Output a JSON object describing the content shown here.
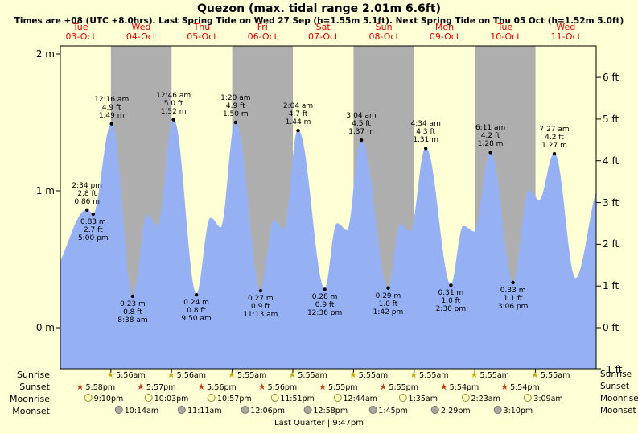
{
  "title": "Quezon (max. tidal range 2.01m 6.6ft)",
  "subtitle": "Times are +08 (UTC +8.0hrs). Last Spring Tide on Wed 27 Sep (h=1.55m 5.1ft). Next Spring Tide on Thu 05 Oct (h=1.52m 5.0ft)",
  "colors": {
    "background": "#ffffd5",
    "band_gray": "#aeaeae",
    "tide_blue": "#95b1f4",
    "header_red": "#e60000",
    "text": "#000000"
  },
  "days": [
    {
      "weekday": "Tue",
      "date": "03-Oct"
    },
    {
      "weekday": "Wed",
      "date": "04-Oct"
    },
    {
      "weekday": "Thu",
      "date": "05-Oct"
    },
    {
      "weekday": "Fri",
      "date": "06-Oct"
    },
    {
      "weekday": "Sat",
      "date": "07-Oct"
    },
    {
      "weekday": "Sun",
      "date": "08-Oct"
    },
    {
      "weekday": "Mon",
      "date": "09-Oct"
    },
    {
      "weekday": "Tue",
      "date": "10-Oct"
    },
    {
      "weekday": "Wed",
      "date": "11-Oct"
    }
  ],
  "axes": {
    "left": [
      "2 m",
      "1 m",
      "0 m"
    ],
    "right": [
      "6 ft",
      "5 ft",
      "4 ft",
      "3 ft",
      "2 ft",
      "1 ft",
      "0 ft",
      "-1 ft"
    ]
  },
  "chart_data": {
    "type": "area",
    "title": "Quezon (max. tidal range 2.01m 6.6ft)",
    "x_unit": "hours since 03-Oct 00:00 (+08)",
    "xlim_hours": [
      4,
      216
    ],
    "ylim_m": [
      -0.305,
      2.06
    ],
    "ylabel_left": "m",
    "ylabel_right": "ft",
    "tide_events": [
      {
        "date": "03-Oct",
        "type": "high",
        "time": "2:34 pm",
        "height_m": 0.86,
        "height_ft": 2.8
      },
      {
        "date": "03-Oct",
        "type": "low",
        "time": "5:00 pm",
        "height_m": 0.83,
        "height_ft": 2.7
      },
      {
        "date": "04-Oct",
        "type": "high",
        "time": "12:16 am",
        "height_m": 1.49,
        "height_ft": 4.9
      },
      {
        "date": "04-Oct",
        "type": "low",
        "time": "8:38 am",
        "height_m": 0.23,
        "height_ft": 0.8
      },
      {
        "date": "05-Oct",
        "type": "high",
        "time": "12:46 am",
        "height_m": 1.52,
        "height_ft": 5.0
      },
      {
        "date": "05-Oct",
        "type": "low",
        "time": "9:50 am",
        "height_m": 0.24,
        "height_ft": 0.8
      },
      {
        "date": "06-Oct",
        "type": "high",
        "time": "1:20 am",
        "height_m": 1.5,
        "height_ft": 4.9
      },
      {
        "date": "06-Oct",
        "type": "low",
        "time": "11:13 am",
        "height_m": 0.27,
        "height_ft": 0.9
      },
      {
        "date": "07-Oct",
        "type": "high",
        "time": "2:04 am",
        "height_m": 1.44,
        "height_ft": 4.7
      },
      {
        "date": "07-Oct",
        "type": "low",
        "time": "12:36 pm",
        "height_m": 0.28,
        "height_ft": 0.9
      },
      {
        "date": "08-Oct",
        "type": "high",
        "time": "3:04 am",
        "height_m": 1.37,
        "height_ft": 4.5
      },
      {
        "date": "08-Oct",
        "type": "low",
        "time": "1:42 pm",
        "height_m": 0.29,
        "height_ft": 1.0
      },
      {
        "date": "09-Oct",
        "type": "high",
        "time": "4:34 am",
        "height_m": 1.31,
        "height_ft": 4.3
      },
      {
        "date": "09-Oct",
        "type": "low",
        "time": "2:30 pm",
        "height_m": 0.31,
        "height_ft": 1.0
      },
      {
        "date": "10-Oct",
        "type": "high",
        "time": "6:11 am",
        "height_m": 1.28,
        "height_ft": 4.2
      },
      {
        "date": "10-Oct",
        "type": "low",
        "time": "3:06 pm",
        "height_m": 0.33,
        "height_ft": 1.1
      },
      {
        "date": "11-Oct",
        "type": "high",
        "time": "7:27 am",
        "height_m": 1.27,
        "height_ft": 4.2
      }
    ],
    "annotations": [
      {
        "t": 14.57,
        "h": 0.86,
        "pos": "above",
        "lines": [
          "2:34 pm",
          "2.8 ft",
          "0.86 m"
        ]
      },
      {
        "t": 17.0,
        "h": 0.83,
        "pos": "below",
        "lines": [
          "0.83 m",
          "2.7 ft",
          "5:00 pm"
        ]
      },
      {
        "t": 24.27,
        "h": 1.49,
        "pos": "above",
        "lines": [
          "12:16 am",
          "4.9 ft",
          "1.49 m"
        ]
      },
      {
        "t": 32.63,
        "h": 0.23,
        "pos": "below",
        "lines": [
          "0.23 m",
          "0.8 ft",
          "8:38 am"
        ]
      },
      {
        "t": 48.77,
        "h": 1.52,
        "pos": "above",
        "lines": [
          "12:46 am",
          "5.0 ft",
          "1.52 m"
        ]
      },
      {
        "t": 57.83,
        "h": 0.24,
        "pos": "below",
        "lines": [
          "0.24 m",
          "0.8 ft",
          "9:50 am"
        ]
      },
      {
        "t": 73.33,
        "h": 1.5,
        "pos": "above",
        "lines": [
          "1:20 am",
          "4.9 ft",
          "1.50 m"
        ]
      },
      {
        "t": 83.22,
        "h": 0.27,
        "pos": "below",
        "lines": [
          "0.27 m",
          "0.9 ft",
          "11:13 am"
        ]
      },
      {
        "t": 98.07,
        "h": 1.44,
        "pos": "above",
        "lines": [
          "2:04 am",
          "4.7 ft",
          "1.44 m"
        ]
      },
      {
        "t": 108.6,
        "h": 0.28,
        "pos": "below",
        "lines": [
          "0.28 m",
          "0.9 ft",
          "12:36 pm"
        ]
      },
      {
        "t": 123.07,
        "h": 1.37,
        "pos": "above",
        "lines": [
          "3:04 am",
          "4.5 ft",
          "1.37 m"
        ]
      },
      {
        "t": 133.7,
        "h": 0.29,
        "pos": "below",
        "lines": [
          "0.29 m",
          "1.0 ft",
          "1:42 pm"
        ]
      },
      {
        "t": 148.57,
        "h": 1.31,
        "pos": "above",
        "lines": [
          "4:34 am",
          "4.3 ft",
          "1.31 m"
        ]
      },
      {
        "t": 158.5,
        "h": 0.31,
        "pos": "below",
        "lines": [
          "0.31 m",
          "1.0 ft",
          "2:30 pm"
        ]
      },
      {
        "t": 174.18,
        "h": 1.28,
        "pos": "above",
        "lines": [
          "6:11 am",
          "4.2 ft",
          "1.28 m"
        ]
      },
      {
        "t": 183.1,
        "h": 0.33,
        "pos": "below",
        "lines": [
          "0.33 m",
          "1.1 ft",
          "3:06 pm"
        ]
      },
      {
        "t": 199.45,
        "h": 1.27,
        "pos": "above",
        "lines": [
          "7:27 am",
          "4.2 ft",
          "1.27 m"
        ]
      }
    ],
    "curve_points": [
      [
        0,
        0.4
      ],
      [
        14.57,
        0.86
      ],
      [
        17.0,
        0.83
      ],
      [
        24.27,
        1.49
      ],
      [
        32.63,
        0.23
      ],
      [
        38.5,
        0.82
      ],
      [
        42.5,
        0.74
      ],
      [
        48.77,
        1.52
      ],
      [
        57.83,
        0.24
      ],
      [
        63.5,
        0.8
      ],
      [
        67.5,
        0.73
      ],
      [
        73.33,
        1.5
      ],
      [
        83.22,
        0.27
      ],
      [
        88.5,
        0.78
      ],
      [
        92.5,
        0.72
      ],
      [
        98.07,
        1.44
      ],
      [
        108.6,
        0.28
      ],
      [
        113.5,
        0.76
      ],
      [
        117.5,
        0.71
      ],
      [
        123.07,
        1.37
      ],
      [
        133.7,
        0.29
      ],
      [
        138.5,
        0.75
      ],
      [
        142.5,
        0.7
      ],
      [
        148.57,
        1.31
      ],
      [
        158.5,
        0.31
      ],
      [
        163.5,
        0.74
      ],
      [
        167.8,
        0.7
      ],
      [
        174.18,
        1.28
      ],
      [
        183.1,
        0.33
      ],
      [
        189.5,
        1.0
      ],
      [
        193.5,
        0.93
      ],
      [
        199.45,
        1.27
      ],
      [
        207.8,
        0.36
      ],
      [
        218,
        1.05
      ]
    ]
  },
  "astro": {
    "rows": [
      {
        "key": "sunrise",
        "label": "Sunrise",
        "icon": "sunrise-star-icon",
        "events": [
          {
            "time": "5:56am",
            "t": 29.93
          },
          {
            "time": "5:56am",
            "t": 53.93
          },
          {
            "time": "5:55am",
            "t": 77.92
          },
          {
            "time": "5:55am",
            "t": 101.92
          },
          {
            "time": "5:55am",
            "t": 125.92
          },
          {
            "time": "5:55am",
            "t": 149.92
          },
          {
            "time": "5:55am",
            "t": 173.92
          },
          {
            "time": "5:55am",
            "t": 197.92
          }
        ]
      },
      {
        "key": "sunset",
        "label": "Sunset",
        "icon": "sunset-star-icon",
        "events": [
          {
            "time": "5:58pm",
            "t": 17.97
          },
          {
            "time": "5:57pm",
            "t": 41.95
          },
          {
            "time": "5:56pm",
            "t": 65.93
          },
          {
            "time": "5:56pm",
            "t": 89.93
          },
          {
            "time": "5:55pm",
            "t": 113.92
          },
          {
            "time": "5:55pm",
            "t": 137.92
          },
          {
            "time": "5:54pm",
            "t": 161.9
          },
          {
            "time": "5:54pm",
            "t": 185.9
          }
        ]
      },
      {
        "key": "moonrise",
        "label": "Moonrise",
        "icon": "moonrise-circle-icon",
        "events": [
          {
            "time": "9:10pm",
            "t": 21.17
          },
          {
            "time": "10:03pm",
            "t": 46.05
          },
          {
            "time": "10:57pm",
            "t": 70.95
          },
          {
            "time": "11:51pm",
            "t": 95.85
          },
          {
            "time": "12:44am",
            "t": 120.73
          },
          {
            "time": "1:35am",
            "t": 145.58
          },
          {
            "time": "2:23am",
            "t": 170.38
          },
          {
            "time": "3:09am",
            "t": 195.15
          }
        ]
      },
      {
        "key": "moonset",
        "label": "Moonset",
        "icon": "moonset-circle-icon",
        "events": [
          {
            "time": "10:14am",
            "t": 34.23
          },
          {
            "time": "11:11am",
            "t": 59.18
          },
          {
            "time": "12:06pm",
            "t": 84.1
          },
          {
            "time": "12:58pm",
            "t": 108.97
          },
          {
            "time": "1:45pm",
            "t": 133.75
          },
          {
            "time": "2:29pm",
            "t": 158.48
          },
          {
            "time": "3:10pm",
            "t": 183.17
          }
        ]
      }
    ],
    "moon_phase": "Last Quarter | 9:47pm"
  }
}
